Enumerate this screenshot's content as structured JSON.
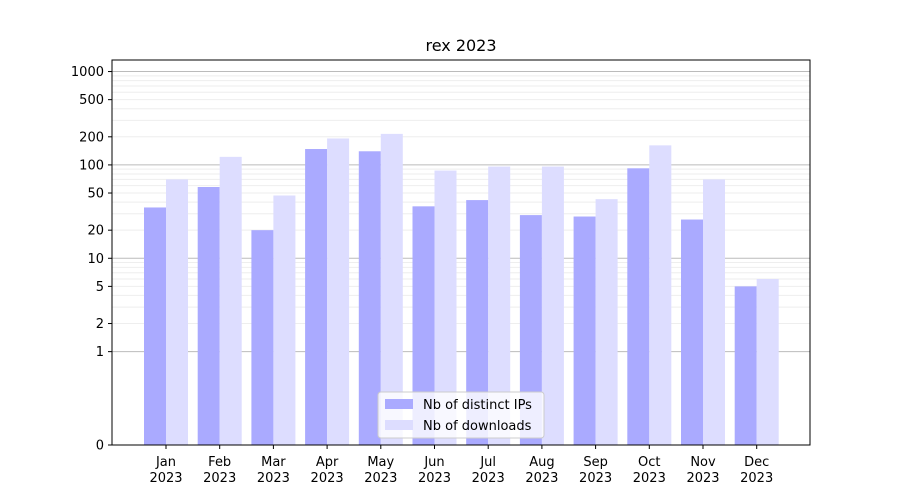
{
  "chart_data": {
    "type": "bar",
    "title": "rex 2023",
    "xlabel": "",
    "ylabel": "",
    "y_scale": "symlog",
    "ylim": [
      0,
      1000
    ],
    "y_ticks": [
      0,
      1,
      2,
      5,
      10,
      20,
      50,
      100,
      200,
      500,
      1000
    ],
    "categories": [
      {
        "month": "Jan",
        "year": "2023"
      },
      {
        "month": "Feb",
        "year": "2023"
      },
      {
        "month": "Mar",
        "year": "2023"
      },
      {
        "month": "Apr",
        "year": "2023"
      },
      {
        "month": "May",
        "year": "2023"
      },
      {
        "month": "Jun",
        "year": "2023"
      },
      {
        "month": "Jul",
        "year": "2023"
      },
      {
        "month": "Aug",
        "year": "2023"
      },
      {
        "month": "Sep",
        "year": "2023"
      },
      {
        "month": "Oct",
        "year": "2023"
      },
      {
        "month": "Nov",
        "year": "2023"
      },
      {
        "month": "Dec",
        "year": "2023"
      }
    ],
    "series": [
      {
        "name": "Nb of distinct IPs",
        "color": "#aaaaff",
        "values": [
          35,
          58,
          20,
          148,
          140,
          36,
          42,
          29,
          28,
          92,
          26,
          5
        ]
      },
      {
        "name": "Nb of downloads",
        "color": "#ddddff",
        "values": [
          70,
          122,
          47,
          192,
          215,
          87,
          96,
          96,
          43,
          162,
          70,
          6
        ]
      }
    ],
    "grid": true,
    "legend_position": "bottom-center"
  }
}
